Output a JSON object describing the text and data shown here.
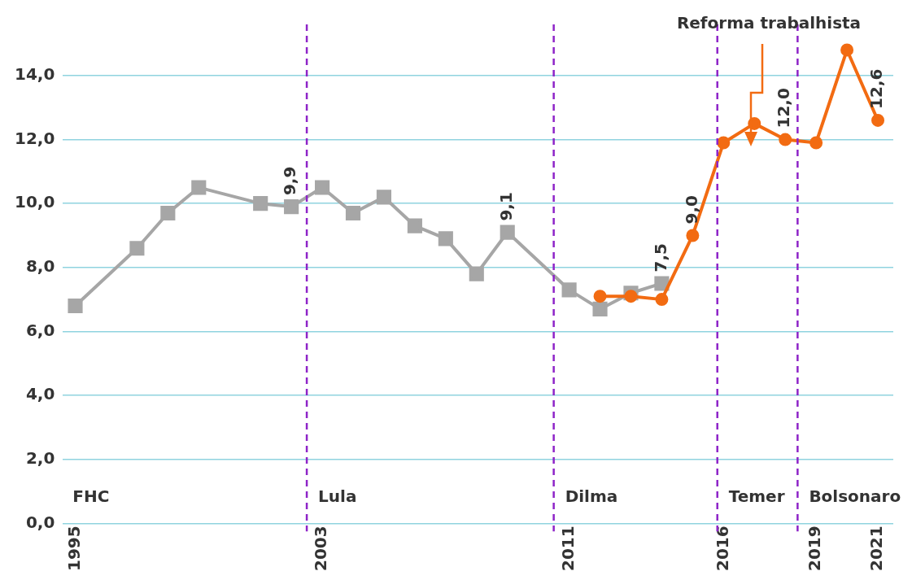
{
  "chart_data": {
    "type": "line",
    "x": [
      1995,
      1997,
      1998,
      1999,
      2001,
      2002,
      2003,
      2004,
      2005,
      2006,
      2007,
      2008,
      2009,
      2011,
      2012,
      2013,
      2014
    ],
    "series": [
      {
        "color": "#a6a6a6",
        "marker": "square",
        "values": [
          6.8,
          8.6,
          9.7,
          10.5,
          10.0,
          9.9,
          10.5,
          9.7,
          10.2,
          9.3,
          8.9,
          7.8,
          9.1,
          7.3,
          6.7,
          7.2,
          7.5
        ],
        "value_labels": [
          null,
          null,
          null,
          null,
          null,
          "9,9",
          null,
          null,
          null,
          null,
          null,
          null,
          "9,1",
          null,
          null,
          null,
          "7,5"
        ]
      },
      {
        "color": "#f26b12",
        "marker": "circle",
        "x": [
          2012,
          2013,
          2014,
          2015,
          2016,
          2017,
          2018,
          2019,
          2020,
          2021
        ],
        "values": [
          7.1,
          7.1,
          7.0,
          9.0,
          11.9,
          12.5,
          12.0,
          11.9,
          14.8,
          12.6
        ],
        "value_labels": [
          null,
          null,
          null,
          "9,0",
          null,
          null,
          "12,0",
          null,
          null,
          "12,6"
        ]
      }
    ],
    "xlim": [
      1994.6,
      2021.5
    ],
    "xticks": [
      1995,
      2003,
      2011,
      2016,
      2019,
      2021
    ],
    "ylim": [
      0,
      15.6
    ],
    "yticks": [
      {
        "value": 0,
        "label": "0,0"
      },
      {
        "value": 2,
        "label": "2,0"
      },
      {
        "value": 4,
        "label": "4,0"
      },
      {
        "value": 6,
        "label": "6,0"
      },
      {
        "value": 8,
        "label": "8,0"
      },
      {
        "value": 10,
        "label": "10,0"
      },
      {
        "value": 12,
        "label": "12,0"
      },
      {
        "value": 14,
        "label": "14,0"
      }
    ],
    "grid": "y",
    "legend": false,
    "line_style": "solid",
    "ref_lines": [
      {
        "axis": "x",
        "value": 2002.5,
        "label": "Lula",
        "color": "#8e24c8",
        "line_style": "dashed"
      },
      {
        "axis": "x",
        "value": 2010.5,
        "label": "Dilma",
        "color": "#8e24c8",
        "line_style": "dashed"
      },
      {
        "axis": "x",
        "value": 2015.8,
        "label": "Temer",
        "color": "#8e24c8",
        "line_style": "dashed"
      },
      {
        "axis": "x",
        "value": 2018.4,
        "label": "Bolsonaro",
        "color": "#8e24c8",
        "line_style": "dashed"
      }
    ],
    "annotations": [
      "FHC",
      "Reforma trabalhista"
    ]
  }
}
